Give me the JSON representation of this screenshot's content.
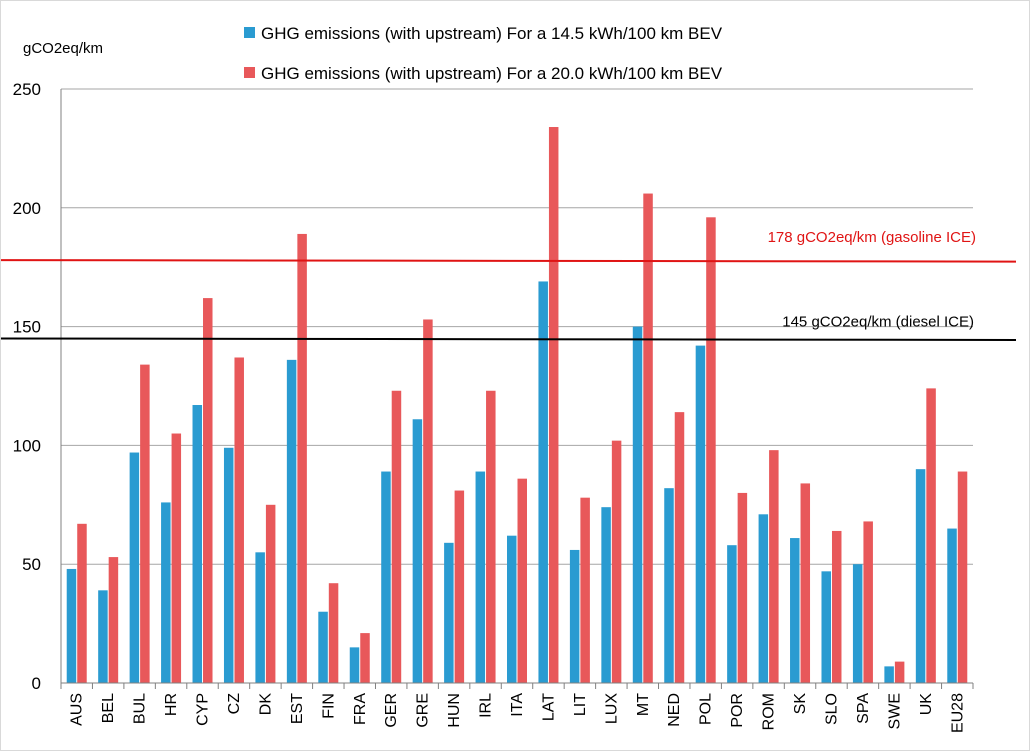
{
  "chart_data": {
    "type": "bar",
    "ylabel": "gCO2eq/km",
    "ylim": [
      0,
      250
    ],
    "yticks": [
      0,
      50,
      100,
      150,
      200,
      250
    ],
    "grid": true,
    "legend_position": "top",
    "categories": [
      "AUS",
      "BEL",
      "BUL",
      "HR",
      "CYP",
      "CZ",
      "DK",
      "EST",
      "FIN",
      "FRA",
      "GER",
      "GRE",
      "HUN",
      "IRL",
      "ITA",
      "LAT",
      "LIT",
      "LUX",
      "MT",
      "NED",
      "POL",
      "POR",
      "ROM",
      "SK",
      "SLO",
      "SPA",
      "SWE",
      "UK",
      "EU28"
    ],
    "series": [
      {
        "name": "GHG emissions (with upstream) For a 14.5 kWh/100 km BEV",
        "color": "#2a9bd1",
        "values": [
          48,
          39,
          97,
          76,
          117,
          99,
          55,
          136,
          30,
          15,
          89,
          111,
          59,
          89,
          62,
          169,
          56,
          74,
          150,
          82,
          142,
          58,
          71,
          61,
          47,
          50,
          7,
          90,
          65
        ]
      },
      {
        "name": "GHG emissions (with upstream) For a 20.0 kWh/100 km BEV",
        "color": "#e8585a",
        "values": [
          67,
          53,
          134,
          105,
          162,
          137,
          75,
          189,
          42,
          21,
          123,
          153,
          81,
          123,
          86,
          234,
          78,
          102,
          206,
          114,
          196,
          80,
          98,
          84,
          64,
          68,
          9,
          124,
          89
        ]
      }
    ],
    "reference_lines": [
      {
        "label": "178 gCO2eq/km (gasoline ICE)",
        "value": 178,
        "color": "#e01414"
      },
      {
        "label": "145 gCO2eq/km (diesel ICE)",
        "value": 145,
        "color": "#000000"
      }
    ]
  }
}
